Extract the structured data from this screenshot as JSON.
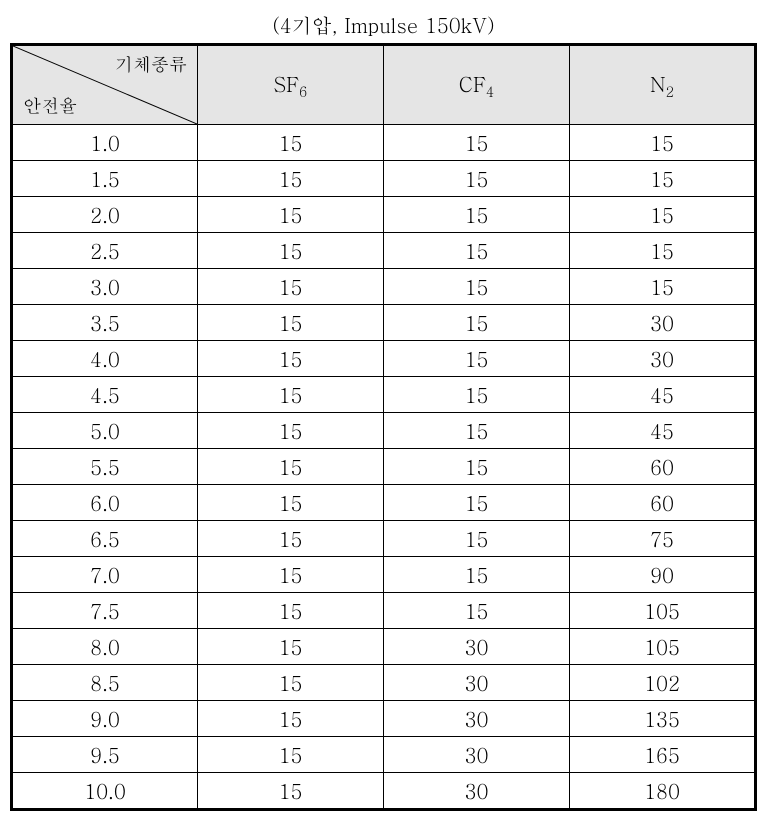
{
  "caption": "(4기압, Impulse 150kV)",
  "header": {
    "diag_top": "기체종류",
    "diag_bottom": "안전율",
    "columns": [
      {
        "label": "SF",
        "sub": "6"
      },
      {
        "label": "CF",
        "sub": "4"
      },
      {
        "label": "N",
        "sub": "2"
      }
    ]
  },
  "rows": [
    {
      "label": "1.0",
      "values": [
        "15",
        "15",
        "15"
      ]
    },
    {
      "label": "1.5",
      "values": [
        "15",
        "15",
        "15"
      ]
    },
    {
      "label": "2.0",
      "values": [
        "15",
        "15",
        "15"
      ]
    },
    {
      "label": "2.5",
      "values": [
        "15",
        "15",
        "15"
      ]
    },
    {
      "label": "3.0",
      "values": [
        "15",
        "15",
        "15"
      ]
    },
    {
      "label": "3.5",
      "values": [
        "15",
        "15",
        "30"
      ]
    },
    {
      "label": "4.0",
      "values": [
        "15",
        "15",
        "30"
      ]
    },
    {
      "label": "4.5",
      "values": [
        "15",
        "15",
        "45"
      ]
    },
    {
      "label": "5.0",
      "values": [
        "15",
        "15",
        "45"
      ]
    },
    {
      "label": "5.5",
      "values": [
        "15",
        "15",
        "60"
      ]
    },
    {
      "label": "6.0",
      "values": [
        "15",
        "15",
        "60"
      ]
    },
    {
      "label": "6.5",
      "values": [
        "15",
        "15",
        "75"
      ]
    },
    {
      "label": "7.0",
      "values": [
        "15",
        "15",
        "90"
      ]
    },
    {
      "label": "7.5",
      "values": [
        "15",
        "15",
        "105"
      ]
    },
    {
      "label": "8.0",
      "values": [
        "15",
        "30",
        "105"
      ]
    },
    {
      "label": "8.5",
      "values": [
        "15",
        "30",
        "102"
      ]
    },
    {
      "label": "9.0",
      "values": [
        "15",
        "30",
        "135"
      ]
    },
    {
      "label": "9.5",
      "values": [
        "15",
        "30",
        "165"
      ]
    },
    {
      "label": "10.0",
      "values": [
        "15",
        "30",
        "180"
      ]
    }
  ],
  "style": {
    "header_bg": "#e5e5e5",
    "border_color": "#000000",
    "font_family": "Batang, Times New Roman, serif",
    "caption_fontsize": 20,
    "cell_fontsize": 20,
    "diag_fontsize": 18,
    "col_widths_pct": [
      25,
      25,
      25,
      25
    ]
  }
}
